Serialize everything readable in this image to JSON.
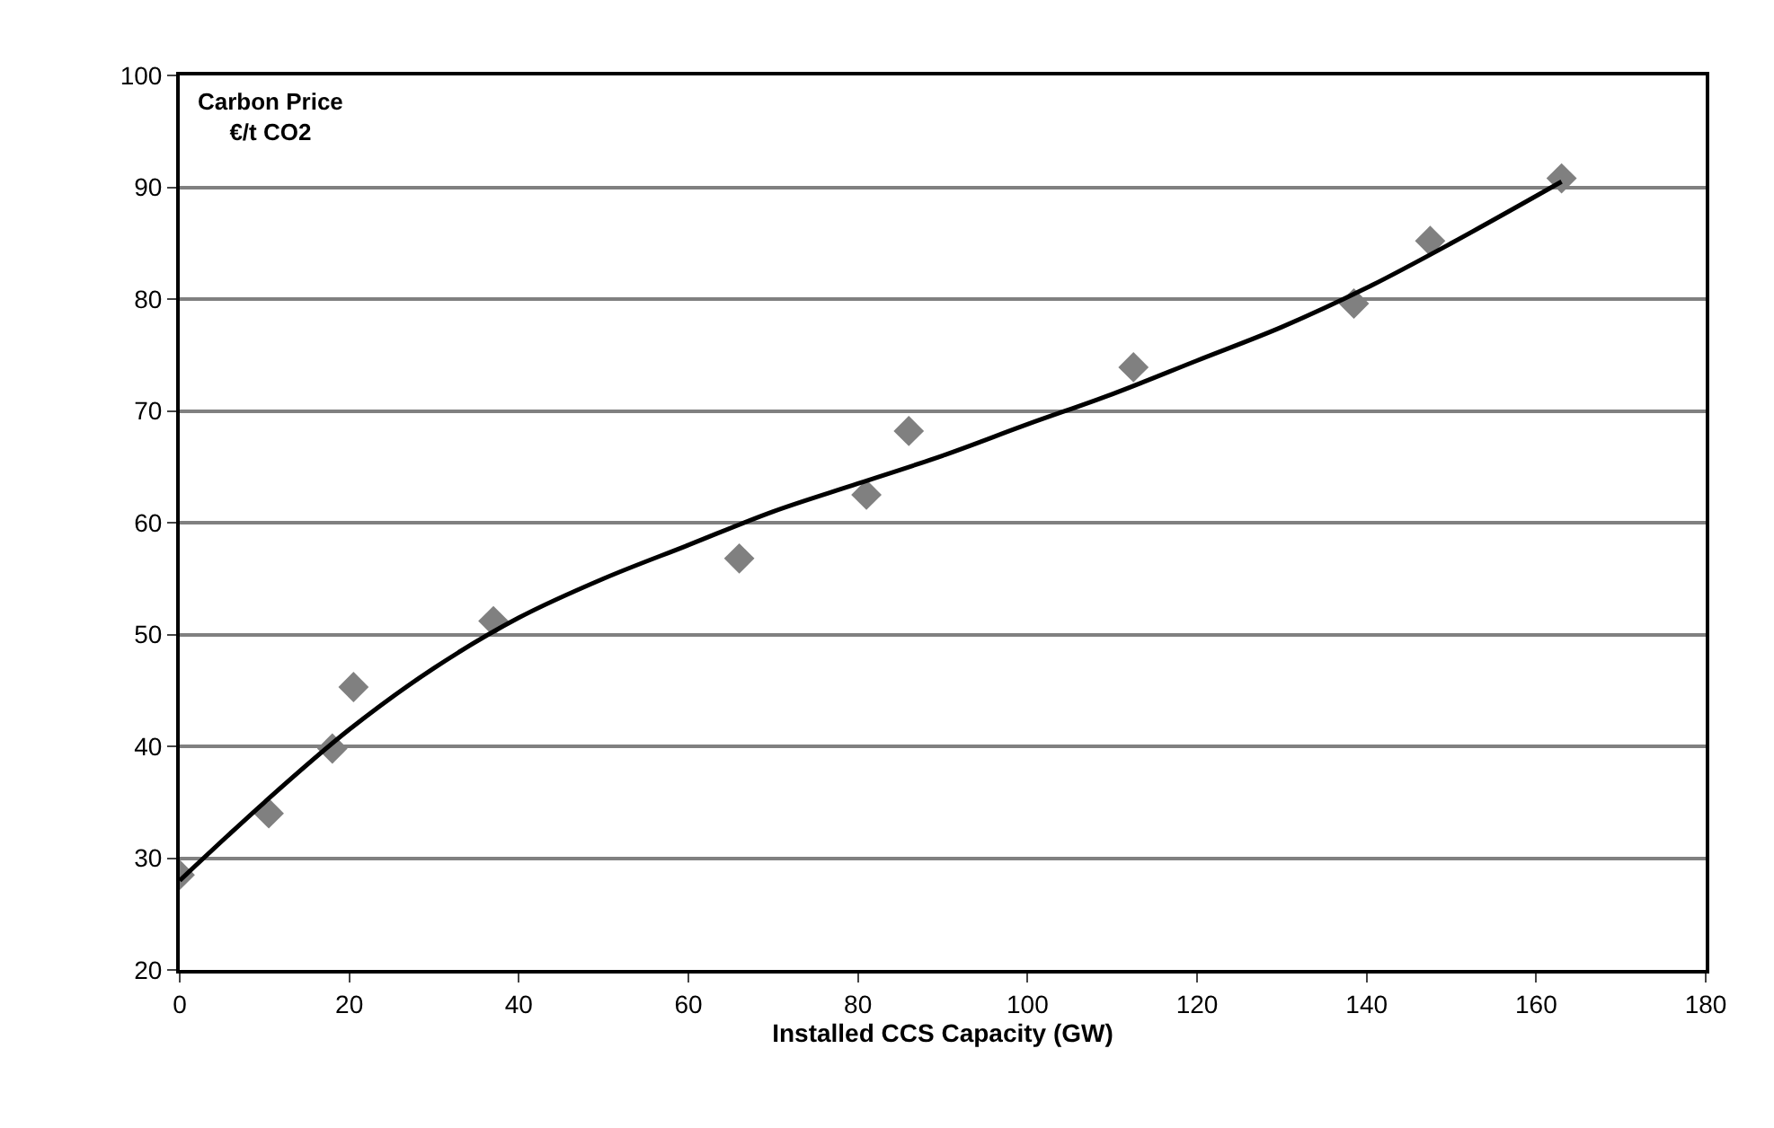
{
  "chart_data": {
    "type": "scatter",
    "ylabel": "Carbon Price\n€/t CO2",
    "xlabel": "Installed CCS Capacity (GW)",
    "xlim": [
      0,
      180
    ],
    "xticks": [
      0,
      20,
      40,
      60,
      80,
      100,
      120,
      140,
      160,
      180
    ],
    "ylim": [
      20,
      100
    ],
    "yticks": [
      20,
      30,
      40,
      50,
      60,
      70,
      80,
      90,
      100
    ],
    "grid": "y",
    "series": [
      {
        "color": "#808080",
        "marker": "diamond",
        "x": [
          0,
          10.5,
          18,
          20.5,
          37,
          66,
          81,
          86,
          112.5,
          138.5,
          147.5,
          163
        ],
        "values": [
          28.5,
          34,
          39.8,
          45.3,
          51.2,
          56.8,
          62.5,
          68.2,
          73.9,
          79.6,
          85.2,
          90.8
        ]
      },
      {
        "type": "line",
        "color": "#000000",
        "marker": "none",
        "line_style": "solid",
        "x": [
          0,
          10,
          20,
          30,
          40,
          50,
          60,
          70,
          80,
          90,
          100,
          110,
          120,
          130,
          140,
          150,
          163
        ],
        "values": [
          28,
          35,
          41.5,
          47,
          51.5,
          55,
          58,
          61,
          63.5,
          66,
          68.8,
          71.5,
          74.5,
          77.5,
          81,
          85,
          90.5
        ]
      }
    ]
  }
}
